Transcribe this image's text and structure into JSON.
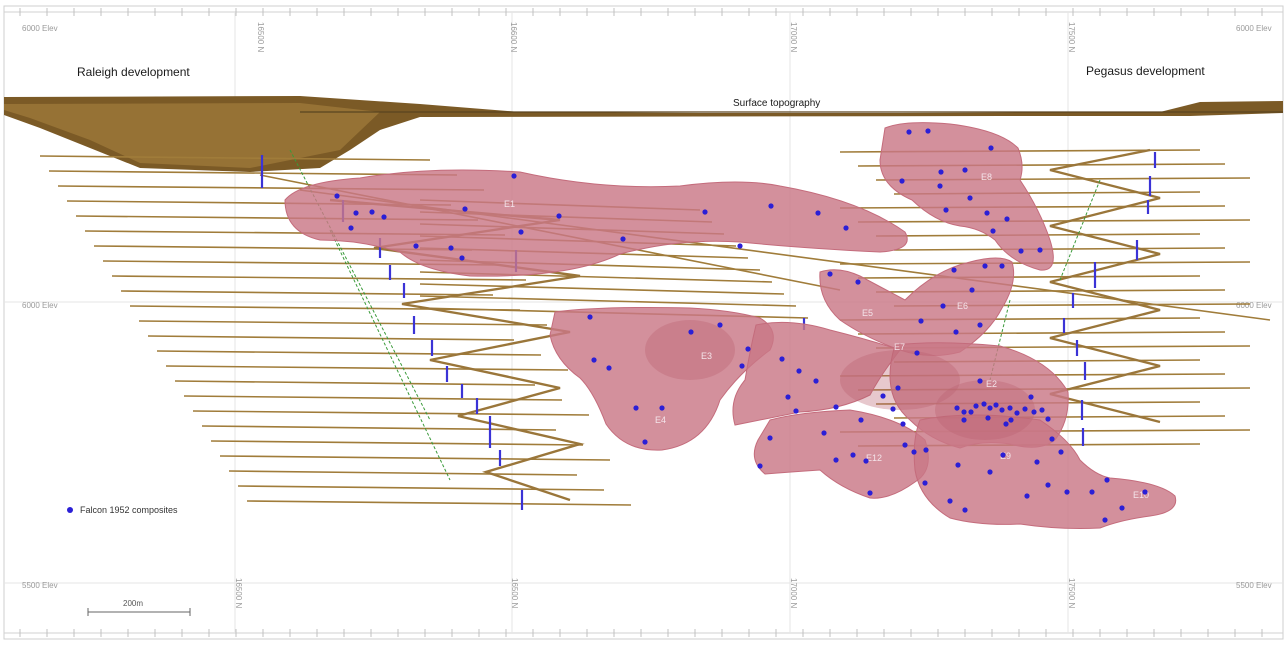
{
  "labels": {
    "raleigh": "Raleigh development",
    "pegasus": "Pegasus development",
    "surface": "Surface topography",
    "legend": "Falcon 1952 composites",
    "scale": "200m"
  },
  "elevations": {
    "top_left": "6000 Elev",
    "top_right": "6000 Elev",
    "mid_left": "6000 Elev",
    "mid_right": "6000 Elev",
    "bottom_left": "5500 Elev",
    "bottom_right": "5500 Elev"
  },
  "northings_top": [
    "16500 N",
    "16600 N",
    "17000 N",
    "17500 N"
  ],
  "northings_bottom": [
    "16500 N",
    "16500 N",
    "17000 N",
    "17500 N"
  ],
  "lenses": {
    "e1": "E1",
    "e3": "E3",
    "e5": "E5",
    "e6": "E6",
    "e7": "E7",
    "e4": "E4",
    "e8": "E8",
    "e2": "E2",
    "e12": "E12",
    "e9": "E9",
    "e10": "E10"
  },
  "colors": {
    "lens_fill": "#c97886",
    "composite": "#2b1fd6",
    "drive": "#a07c3a",
    "topography": "#6e5223",
    "drillhole": "#3a9a3a"
  }
}
